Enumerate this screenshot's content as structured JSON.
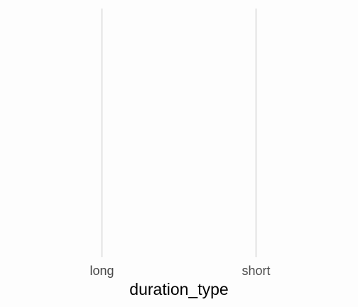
{
  "chart_data": {
    "type": "scatter",
    "categories": [
      "long",
      "short"
    ],
    "values": [],
    "title": "",
    "xlabel": "duration_type",
    "ylabel": "",
    "grid": "vertical major gridlines only"
  }
}
